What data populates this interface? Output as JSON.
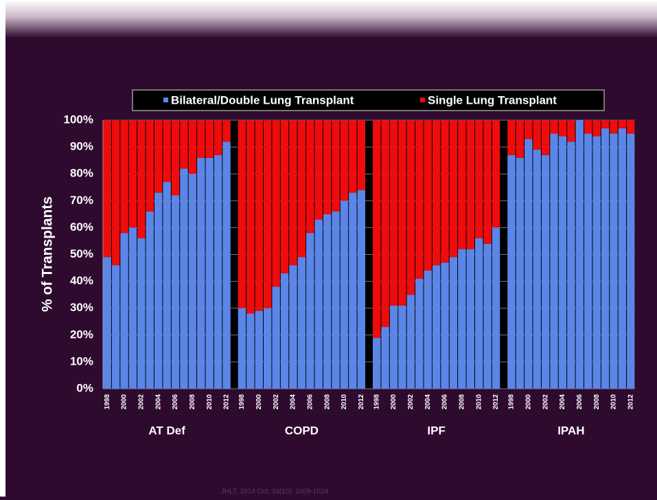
{
  "chart_data": {
    "type": "stacked_bar_groups",
    "y_axis_label": "% of Transplants",
    "ylim": [
      0,
      100
    ],
    "yticks": [
      {
        "value": 0,
        "label": "0%"
      },
      {
        "value": 10,
        "label": "10%"
      },
      {
        "value": 20,
        "label": "20%"
      },
      {
        "value": 30,
        "label": "30%"
      },
      {
        "value": 40,
        "label": "40%"
      },
      {
        "value": 50,
        "label": "50%"
      },
      {
        "value": 60,
        "label": "60%"
      },
      {
        "value": 70,
        "label": "70%"
      },
      {
        "value": 80,
        "label": "80%"
      },
      {
        "value": 90,
        "label": "90%"
      },
      {
        "value": 100,
        "label": "100%"
      }
    ],
    "grid": true,
    "categories": [
      "1998",
      null,
      "2000",
      null,
      "2002",
      null,
      "2004",
      null,
      "2006",
      null,
      "2008",
      null,
      "2010",
      null,
      "2012"
    ],
    "groups": [
      "AT Def",
      "COPD",
      "IPF",
      "IPAH"
    ],
    "series": [
      {
        "name": "Bilateral/Double Lung Transplant",
        "color": "#5b86e8",
        "values": [
          [
            49,
            46,
            58,
            60,
            56,
            66,
            73,
            77,
            72,
            82,
            80,
            86,
            86,
            87,
            92
          ],
          [
            30,
            28,
            29,
            30,
            38,
            43,
            46,
            49,
            58,
            63,
            65,
            66,
            70,
            73,
            74
          ],
          [
            19,
            23,
            31,
            31,
            35,
            41,
            44,
            46,
            47,
            49,
            52,
            52,
            56,
            54,
            60
          ],
          [
            87,
            86,
            93,
            89,
            87,
            95,
            94,
            92,
            100,
            95,
            94,
            97,
            95,
            97,
            95
          ]
        ]
      },
      {
        "name": "Single Lung Transplant",
        "color": "#ee0c0c",
        "values": [
          [
            51,
            54,
            42,
            40,
            44,
            34,
            27,
            23,
            28,
            18,
            20,
            14,
            14,
            13,
            8
          ],
          [
            70,
            72,
            71,
            70,
            62,
            57,
            54,
            51,
            42,
            37,
            35,
            34,
            30,
            27,
            26
          ],
          [
            81,
            77,
            69,
            69,
            65,
            59,
            56,
            54,
            53,
            51,
            48,
            48,
            44,
            46,
            40
          ],
          [
            13,
            14,
            7,
            11,
            13,
            5,
            6,
            8,
            0,
            5,
            6,
            3,
            5,
            3,
            5
          ]
        ]
      }
    ],
    "source": "JHLT. 2014 Oct; 33(10): 1009-1024"
  }
}
